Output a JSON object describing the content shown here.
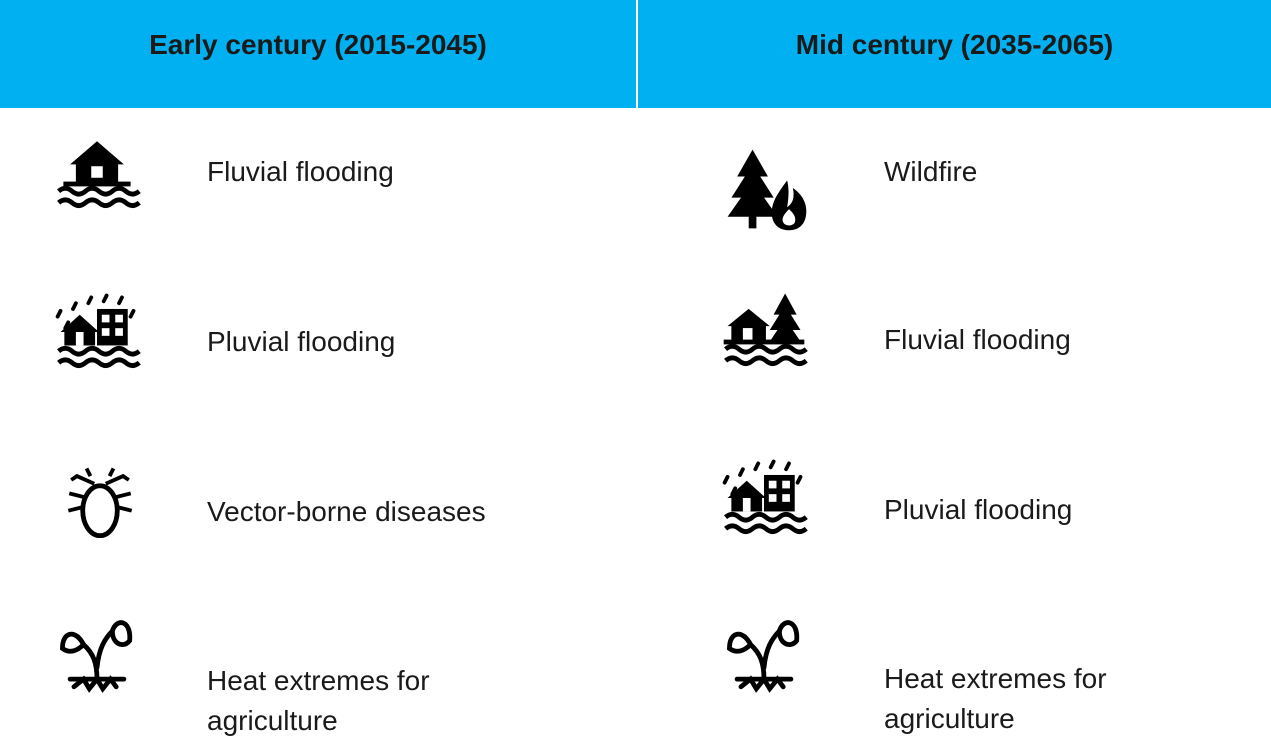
{
  "table": {
    "columns": [
      {
        "header": "Early century (2015-2045)",
        "items": [
          "Fluvial flooding",
          "Pluvial flooding",
          "Vector-borne diseases",
          "Heat extremes for agriculture"
        ]
      },
      {
        "header": "Mid century (2035-2065)",
        "items": [
          "Wildfire",
          "Fluvial flooding",
          "Pluvial flooding",
          "Heat extremes for agriculture"
        ]
      }
    ]
  }
}
